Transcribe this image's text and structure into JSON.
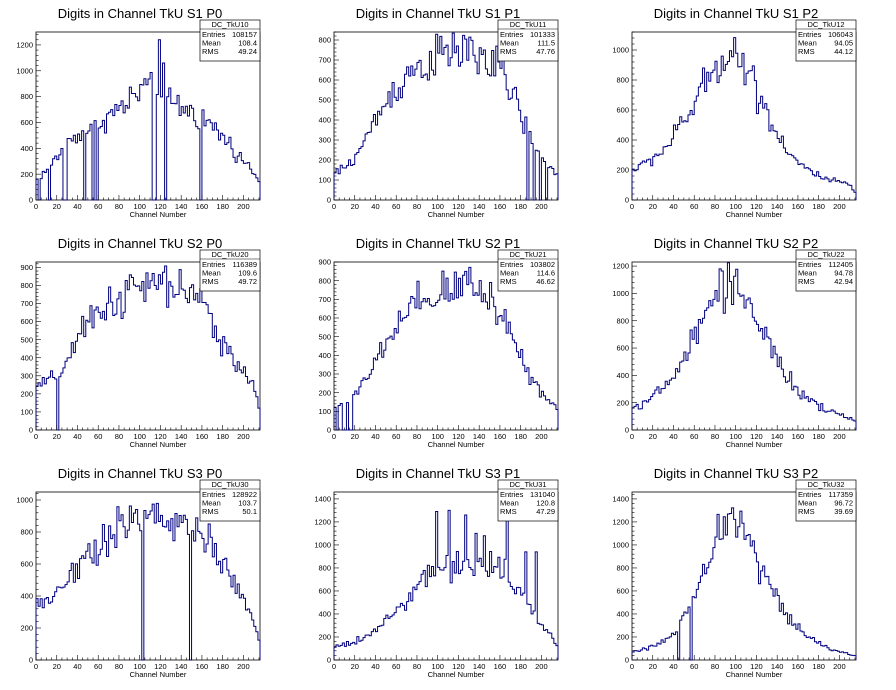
{
  "figure": {
    "colors": {
      "histogram": "#00007f",
      "frame": "#000000",
      "background": "#ffffff"
    }
  },
  "chart_data": [
    {
      "type": "histogram",
      "title": "Digits in Channel TkU S1 P0",
      "xlabel": "Channel Number",
      "ylabel": "",
      "stats": {
        "name": "DC_TkU10",
        "entries": "108157",
        "mean": "108.4",
        "rms": "49.24"
      },
      "xlim": [
        0,
        216
      ],
      "ylim": [
        0,
        1300
      ],
      "xticks": [
        0,
        20,
        40,
        60,
        80,
        100,
        120,
        140,
        160,
        180,
        200
      ],
      "yticks": [
        0,
        200,
        400,
        600,
        800,
        1000,
        1200
      ],
      "bins": 108,
      "profile": [
        [
          0,
          150
        ],
        [
          10,
          230
        ],
        [
          20,
          330
        ],
        [
          30,
          430
        ],
        [
          40,
          510
        ],
        [
          50,
          560
        ],
        [
          60,
          610
        ],
        [
          70,
          650
        ],
        [
          80,
          700
        ],
        [
          90,
          760
        ],
        [
          100,
          840
        ],
        [
          105,
          880
        ],
        [
          110,
          840
        ],
        [
          120,
          800
        ],
        [
          130,
          760
        ],
        [
          140,
          720
        ],
        [
          150,
          680
        ],
        [
          160,
          630
        ],
        [
          170,
          570
        ],
        [
          180,
          490
        ],
        [
          190,
          400
        ],
        [
          200,
          300
        ],
        [
          210,
          220
        ],
        [
          216,
          120
        ]
      ],
      "spikes": [
        [
          112,
          1240
        ],
        [
          118,
          1240
        ],
        [
          122,
          1060
        ]
      ],
      "dips": [
        [
          3,
          0
        ],
        [
          13,
          0
        ],
        [
          27,
          0
        ],
        [
          29,
          0
        ],
        [
          47,
          0
        ],
        [
          54,
          0
        ],
        [
          58,
          0
        ],
        [
          113,
          0
        ],
        [
          114,
          0
        ],
        [
          124,
          0
        ],
        [
          158,
          0
        ]
      ]
    },
    {
      "type": "histogram",
      "title": "Digits in Channel TkU S1 P1",
      "xlabel": "Channel Number",
      "ylabel": "",
      "stats": {
        "name": "DC_TkU11",
        "entries": "101333",
        "mean": "111.5",
        "rms": "47.76"
      },
      "xlim": [
        0,
        216
      ],
      "ylim": [
        0,
        840
      ],
      "xticks": [
        0,
        20,
        40,
        60,
        80,
        100,
        120,
        140,
        160,
        180,
        200
      ],
      "yticks": [
        0,
        100,
        200,
        300,
        400,
        500,
        600,
        700,
        800
      ],
      "bins": 108,
      "profile": [
        [
          0,
          130
        ],
        [
          10,
          160
        ],
        [
          20,
          210
        ],
        [
          30,
          300
        ],
        [
          40,
          400
        ],
        [
          50,
          490
        ],
        [
          60,
          560
        ],
        [
          70,
          620
        ],
        [
          80,
          660
        ],
        [
          90,
          690
        ],
        [
          100,
          710
        ],
        [
          110,
          730
        ],
        [
          120,
          745
        ],
        [
          130,
          745
        ],
        [
          140,
          720
        ],
        [
          150,
          690
        ],
        [
          160,
          640
        ],
        [
          170,
          560
        ],
        [
          180,
          430
        ],
        [
          190,
          300
        ],
        [
          200,
          200
        ],
        [
          210,
          160
        ],
        [
          216,
          120
        ]
      ],
      "spikes": [],
      "dips": [
        [
          187,
          0
        ],
        [
          193,
          0
        ],
        [
          199,
          0
        ],
        [
          205,
          0
        ]
      ]
    },
    {
      "type": "histogram",
      "title": "Digits in Channel TkU S1 P2",
      "xlabel": "Channel Number",
      "ylabel": "",
      "stats": {
        "name": "DC_TkU12",
        "entries": "106043",
        "mean": "94.05",
        "rms": "44.12"
      },
      "xlim": [
        0,
        216
      ],
      "ylim": [
        0,
        1120
      ],
      "xticks": [
        0,
        20,
        40,
        60,
        80,
        100,
        120,
        140,
        160,
        180,
        200
      ],
      "yticks": [
        0,
        200,
        400,
        600,
        800,
        1000
      ],
      "bins": 108,
      "profile": [
        [
          0,
          200
        ],
        [
          10,
          230
        ],
        [
          20,
          280
        ],
        [
          30,
          330
        ],
        [
          40,
          420
        ],
        [
          50,
          520
        ],
        [
          60,
          640
        ],
        [
          70,
          760
        ],
        [
          80,
          880
        ],
        [
          90,
          980
        ],
        [
          95,
          1010
        ],
        [
          100,
          980
        ],
        [
          110,
          880
        ],
        [
          120,
          740
        ],
        [
          130,
          590
        ],
        [
          140,
          440
        ],
        [
          150,
          340
        ],
        [
          160,
          250
        ],
        [
          170,
          200
        ],
        [
          180,
          160
        ],
        [
          190,
          130
        ],
        [
          200,
          120
        ],
        [
          210,
          100
        ],
        [
          216,
          40
        ]
      ],
      "spikes": [],
      "dips": []
    },
    {
      "type": "histogram",
      "title": "Digits in Channel TkU S2 P0",
      "xlabel": "Channel Number",
      "ylabel": "",
      "stats": {
        "name": "DC_TkU20",
        "entries": "116389",
        "mean": "109.6",
        "rms": "49.72"
      },
      "xlim": [
        0,
        216
      ],
      "ylim": [
        0,
        930
      ],
      "xticks": [
        0,
        20,
        40,
        60,
        80,
        100,
        120,
        140,
        160,
        180,
        200
      ],
      "yticks": [
        0,
        100,
        200,
        300,
        400,
        500,
        600,
        700,
        800,
        900
      ],
      "bins": 108,
      "profile": [
        [
          0,
          240
        ],
        [
          10,
          260
        ],
        [
          20,
          300
        ],
        [
          30,
          380
        ],
        [
          40,
          480
        ],
        [
          50,
          580
        ],
        [
          60,
          660
        ],
        [
          70,
          700
        ],
        [
          80,
          730
        ],
        [
          90,
          760
        ],
        [
          100,
          780
        ],
        [
          110,
          800
        ],
        [
          120,
          800
        ],
        [
          130,
          800
        ],
        [
          140,
          780
        ],
        [
          150,
          740
        ],
        [
          160,
          680
        ],
        [
          170,
          600
        ],
        [
          180,
          500
        ],
        [
          190,
          400
        ],
        [
          200,
          320
        ],
        [
          210,
          240
        ],
        [
          216,
          120
        ]
      ],
      "spikes": [],
      "dips": [
        [
          20,
          0
        ]
      ]
    },
    {
      "type": "histogram",
      "title": "Digits in Channel TkU S2 P1",
      "xlabel": "Channel Number",
      "ylabel": "",
      "stats": {
        "name": "DC_TkU21",
        "entries": "103802",
        "mean": "114.6",
        "rms": "46.62"
      },
      "xlim": [
        0,
        216
      ],
      "ylim": [
        0,
        900
      ],
      "xticks": [
        0,
        20,
        40,
        60,
        80,
        100,
        120,
        140,
        160,
        180,
        200
      ],
      "yticks": [
        0,
        100,
        200,
        300,
        400,
        500,
        600,
        700,
        800,
        900
      ],
      "bins": 108,
      "profile": [
        [
          0,
          120
        ],
        [
          10,
          140
        ],
        [
          20,
          180
        ],
        [
          30,
          260
        ],
        [
          40,
          360
        ],
        [
          50,
          460
        ],
        [
          60,
          540
        ],
        [
          70,
          610
        ],
        [
          80,
          660
        ],
        [
          90,
          690
        ],
        [
          100,
          720
        ],
        [
          110,
          740
        ],
        [
          120,
          760
        ],
        [
          130,
          790
        ],
        [
          140,
          760
        ],
        [
          150,
          720
        ],
        [
          160,
          640
        ],
        [
          170,
          530
        ],
        [
          180,
          400
        ],
        [
          190,
          280
        ],
        [
          200,
          200
        ],
        [
          210,
          150
        ],
        [
          216,
          100
        ]
      ],
      "spikes": [
        [
          126,
          850
        ]
      ],
      "dips": [
        [
          3,
          0
        ],
        [
          9,
          0
        ],
        [
          11,
          0
        ],
        [
          15,
          0
        ],
        [
          17,
          0
        ]
      ]
    },
    {
      "type": "histogram",
      "title": "Digits in Channel TkU S2 P2",
      "xlabel": "Channel Number",
      "ylabel": "",
      "stats": {
        "name": "DC_TkU22",
        "entries": "112405",
        "mean": "94.78",
        "rms": "42.94"
      },
      "xlim": [
        0,
        216
      ],
      "ylim": [
        0,
        1230
      ],
      "xticks": [
        0,
        20,
        40,
        60,
        80,
        100,
        120,
        140,
        160,
        180,
        200
      ],
      "yticks": [
        0,
        200,
        400,
        600,
        800,
        1000,
        1200
      ],
      "bins": 108,
      "profile": [
        [
          0,
          160
        ],
        [
          10,
          200
        ],
        [
          20,
          240
        ],
        [
          30,
          300
        ],
        [
          40,
          390
        ],
        [
          50,
          520
        ],
        [
          60,
          680
        ],
        [
          70,
          840
        ],
        [
          80,
          970
        ],
        [
          90,
          1060
        ],
        [
          95,
          1090
        ],
        [
          100,
          1080
        ],
        [
          110,
          980
        ],
        [
          120,
          820
        ],
        [
          130,
          660
        ],
        [
          140,
          500
        ],
        [
          150,
          380
        ],
        [
          160,
          290
        ],
        [
          170,
          220
        ],
        [
          180,
          170
        ],
        [
          190,
          140
        ],
        [
          200,
          110
        ],
        [
          210,
          90
        ],
        [
          216,
          60
        ]
      ],
      "spikes": [],
      "dips": []
    },
    {
      "type": "histogram",
      "title": "Digits in Channel TkU S3 P0",
      "xlabel": "Channel Number",
      "ylabel": "",
      "stats": {
        "name": "DC_TkU30",
        "entries": "128922",
        "mean": "103.7",
        "rms": "50.1"
      },
      "xlim": [
        0,
        216
      ],
      "ylim": [
        0,
        1050
      ],
      "xticks": [
        0,
        20,
        40,
        60,
        80,
        100,
        120,
        140,
        160,
        180,
        200
      ],
      "yticks": [
        0,
        200,
        400,
        600,
        800,
        1000
      ],
      "bins": 108,
      "profile": [
        [
          0,
          330
        ],
        [
          10,
          380
        ],
        [
          20,
          430
        ],
        [
          30,
          500
        ],
        [
          40,
          580
        ],
        [
          50,
          660
        ],
        [
          60,
          730
        ],
        [
          70,
          790
        ],
        [
          80,
          830
        ],
        [
          90,
          860
        ],
        [
          100,
          880
        ],
        [
          110,
          890
        ],
        [
          120,
          890
        ],
        [
          130,
          880
        ],
        [
          140,
          860
        ],
        [
          150,
          830
        ],
        [
          160,
          780
        ],
        [
          170,
          700
        ],
        [
          180,
          600
        ],
        [
          190,
          480
        ],
        [
          200,
          360
        ],
        [
          210,
          240
        ],
        [
          216,
          100
        ]
      ],
      "spikes": [
        [
          148,
          1005
        ]
      ],
      "dips": [
        [
          103,
          0
        ],
        [
          149,
          0
        ]
      ]
    },
    {
      "type": "histogram",
      "title": "Digits in Channel TkU S3 P1",
      "xlabel": "Channel Number",
      "ylabel": "",
      "stats": {
        "name": "DC_TkU31",
        "entries": "131040",
        "mean": "120.8",
        "rms": "47.29"
      },
      "xlim": [
        0,
        216
      ],
      "ylim": [
        0,
        1460
      ],
      "xticks": [
        0,
        20,
        40,
        60,
        80,
        100,
        120,
        140,
        160,
        180,
        200
      ],
      "yticks": [
        0,
        200,
        400,
        600,
        800,
        1000,
        1200,
        1400
      ],
      "bins": 108,
      "profile": [
        [
          0,
          110
        ],
        [
          10,
          140
        ],
        [
          20,
          160
        ],
        [
          30,
          190
        ],
        [
          40,
          250
        ],
        [
          50,
          340
        ],
        [
          60,
          440
        ],
        [
          70,
          540
        ],
        [
          80,
          620
        ],
        [
          90,
          700
        ],
        [
          100,
          760
        ],
        [
          110,
          800
        ],
        [
          120,
          820
        ],
        [
          130,
          840
        ],
        [
          140,
          840
        ],
        [
          150,
          820
        ],
        [
          160,
          790
        ],
        [
          170,
          720
        ],
        [
          180,
          600
        ],
        [
          190,
          440
        ],
        [
          200,
          300
        ],
        [
          210,
          200
        ],
        [
          216,
          110
        ]
      ],
      "spikes": [
        [
          99,
          1290
        ],
        [
          111,
          1300
        ],
        [
          127,
          1260
        ],
        [
          136,
          1100
        ],
        [
          145,
          1080
        ],
        [
          167,
          1350
        ],
        [
          184,
          940
        ],
        [
          195,
          940
        ]
      ],
      "dips": []
    },
    {
      "type": "histogram",
      "title": "Digits in Channel TkU S3 P2",
      "xlabel": "Channel Number",
      "ylabel": "",
      "stats": {
        "name": "DC_TkU32",
        "entries": "117359",
        "mean": "96.72",
        "rms": "39.69"
      },
      "xlim": [
        0,
        216
      ],
      "ylim": [
        0,
        1460
      ],
      "xticks": [
        0,
        20,
        40,
        60,
        80,
        100,
        120,
        140,
        160,
        180,
        200
      ],
      "yticks": [
        0,
        200,
        400,
        600,
        800,
        1000,
        1200,
        1400
      ],
      "bins": 108,
      "profile": [
        [
          0,
          70
        ],
        [
          10,
          90
        ],
        [
          20,
          120
        ],
        [
          30,
          160
        ],
        [
          40,
          240
        ],
        [
          50,
          350
        ],
        [
          60,
          520
        ],
        [
          70,
          760
        ],
        [
          80,
          1000
        ],
        [
          90,
          1200
        ],
        [
          95,
          1260
        ],
        [
          100,
          1240
        ],
        [
          110,
          1100
        ],
        [
          120,
          900
        ],
        [
          130,
          700
        ],
        [
          140,
          520
        ],
        [
          150,
          380
        ],
        [
          160,
          280
        ],
        [
          170,
          200
        ],
        [
          180,
          140
        ],
        [
          190,
          100
        ],
        [
          200,
          70
        ],
        [
          210,
          50
        ],
        [
          216,
          30
        ]
      ],
      "spikes": [],
      "dips": [
        [
          44,
          0
        ],
        [
          56,
          0
        ]
      ]
    }
  ]
}
